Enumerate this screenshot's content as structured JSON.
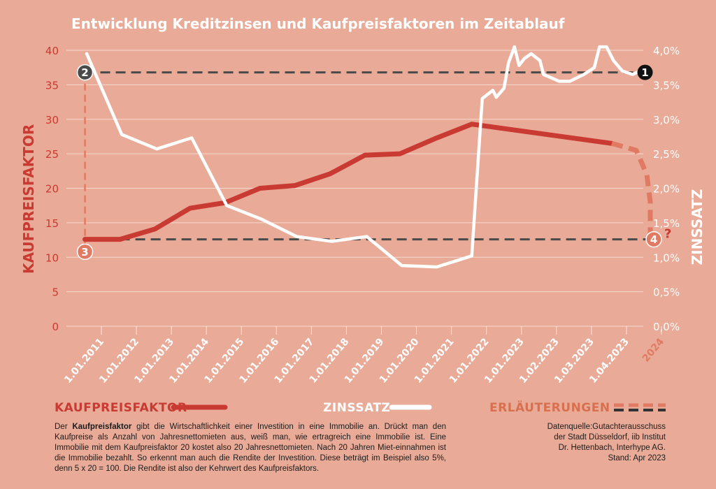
{
  "title": "Entwicklung Kreditzinsen und Kaufpreisfaktoren im Zeitablauf",
  "chart_data": {
    "type": "line",
    "title": "Entwicklung Kreditzinsen und Kaufpreisfaktoren im Zeitablauf",
    "left_axis": {
      "label": "KAUFPREISFAKTOR",
      "range": [
        0,
        40
      ],
      "ticks": [
        "0",
        "5",
        "10",
        "15",
        "20",
        "25",
        "30",
        "35",
        "40"
      ]
    },
    "right_axis": {
      "label": "ZINSSATZ",
      "range": [
        0,
        4.0
      ],
      "ticks": [
        "0,0%",
        "0,5%",
        "1,0%",
        "1,5%",
        "2,0%",
        "2,5%",
        "3,0%",
        "3,5%",
        "4,0%"
      ]
    },
    "x_ticks": [
      "1.01.2011",
      "1.01.2012",
      "1.01.2013",
      "1.01.2014",
      "1.01.2015",
      "1.01.2016",
      "1.01.2017",
      "1.01.2018",
      "1.01.2019",
      "1.01.2020",
      "1.01.2021",
      "1.01.2022",
      "1.01.2023",
      "1.02.2023",
      "1.03.2023",
      "1.04.2023",
      "2024"
    ],
    "series": [
      {
        "name": "KAUFPREISFAKTOR",
        "axis": "left",
        "color": "#c93a32",
        "points": [
          [
            0.45,
            12.6
          ],
          [
            1.45,
            12.6
          ],
          [
            2.45,
            14.1
          ],
          [
            3.45,
            17.1
          ],
          [
            4.45,
            17.9
          ],
          [
            5.45,
            20.0
          ],
          [
            6.45,
            20.4
          ],
          [
            7.45,
            22.1
          ],
          [
            8.45,
            24.8
          ],
          [
            9.45,
            25.0
          ],
          [
            10.45,
            27.2
          ],
          [
            11.5,
            29.3
          ],
          [
            15.5,
            26.5
          ]
        ]
      },
      {
        "name": "ZINSSATZ",
        "axis": "right",
        "color": "#ffffff",
        "points": [
          [
            0.5,
            3.95
          ],
          [
            1.5,
            2.78
          ],
          [
            2.5,
            2.57
          ],
          [
            3.5,
            2.73
          ],
          [
            4.5,
            1.75
          ],
          [
            5.5,
            1.55
          ],
          [
            6.5,
            1.3
          ],
          [
            7.5,
            1.23
          ],
          [
            8.5,
            1.3
          ],
          [
            9.5,
            0.88
          ],
          [
            10.5,
            0.86
          ],
          [
            11.5,
            1.02
          ],
          [
            11.8,
            3.3
          ],
          [
            12.1,
            3.42
          ],
          [
            12.2,
            3.32
          ],
          [
            12.42,
            3.45
          ],
          [
            12.55,
            3.82
          ],
          [
            12.72,
            4.05
          ],
          [
            12.85,
            3.78
          ],
          [
            13.0,
            3.88
          ],
          [
            13.2,
            3.95
          ],
          [
            13.45,
            3.85
          ],
          [
            13.55,
            3.65
          ],
          [
            14.0,
            3.55
          ],
          [
            14.3,
            3.55
          ],
          [
            14.7,
            3.65
          ],
          [
            15.0,
            3.75
          ],
          [
            15.15,
            4.05
          ],
          [
            15.35,
            4.05
          ],
          [
            15.55,
            3.85
          ],
          [
            15.8,
            3.7
          ],
          [
            16.1,
            3.65
          ],
          [
            16.3,
            3.7
          ]
        ]
      },
      {
        "name": "ERLÄUTERUNGEN",
        "axis": "left",
        "color": "#e07a62",
        "dashed": true,
        "points": [
          [
            15.5,
            26.5
          ],
          [
            16.2,
            25.5
          ],
          [
            16.5,
            22
          ],
          [
            16.6,
            18
          ],
          [
            16.6,
            12.6
          ]
        ]
      }
    ],
    "reference_lines": [
      {
        "color": "#4a4a4a",
        "dashed": true,
        "axis": "left",
        "from": [
          0.45,
          36.8
        ],
        "to": [
          16.45,
          36.8
        ]
      },
      {
        "color": "#4a4a4a",
        "dashed": true,
        "axis": "left",
        "from": [
          1.45,
          12.6
        ],
        "to": [
          16.7,
          12.6
        ]
      },
      {
        "color": "#e07a62",
        "dashed": true,
        "axis": "left",
        "from": [
          0.45,
          36.8
        ],
        "to": [
          0.45,
          11.0
        ]
      }
    ],
    "markers": [
      {
        "label": "1",
        "x": 16.45,
        "y": 36.8,
        "color": "#111111"
      },
      {
        "label": "2",
        "x": 0.45,
        "y": 36.8,
        "color": "#4a4a4a"
      },
      {
        "label": "3",
        "x": 0.45,
        "y": 10.8,
        "color": "#e07a62"
      },
      {
        "label": "4",
        "x": 16.7,
        "y": 12.6,
        "color": "#e07a62"
      }
    ],
    "question_mark": "?",
    "legend": [
      {
        "label": "KAUFPREISFAKTOR",
        "color": "#c93a32",
        "dashed": false
      },
      {
        "label": "ZINSSATZ",
        "color": "#ffffff",
        "dashed": false
      },
      {
        "label": "ERLÄUTERUNGEN",
        "color": "#e07a62",
        "dashed": true
      }
    ]
  },
  "note_left_parts": [
    "Der ",
    "Kaufpreisfaktor",
    " gibt die Wirtschaftlichkeit einer Investition in eine Immobilie an. Drückt man den Kaufpreise als Anzahl von Jahresnettomieten aus, weiß man, wie ertragreich eine Immobilie ist. Eine Immobilie mit dem Kaufpreisfaktor 20 kostet also 20 Jahresnettomieten. Nach 20 Jahren Miet-einnahmen ist die Immobilie bezahlt. So erkennt man auch die Rendite der Investition. Diese beträgt im Beispiel also 5%, denn 5 x 20 = 100. Die Rendite ist also der Kehrwert des Kaufpreisfaktors."
  ],
  "note_right_lines": [
    "Datenquelle:Gutachterausschuss",
    "der Stadt Düsseldorf, iib Institut",
    "Dr. Hettenbach, Interhype AG.",
    "Stand: Apr 2023"
  ]
}
